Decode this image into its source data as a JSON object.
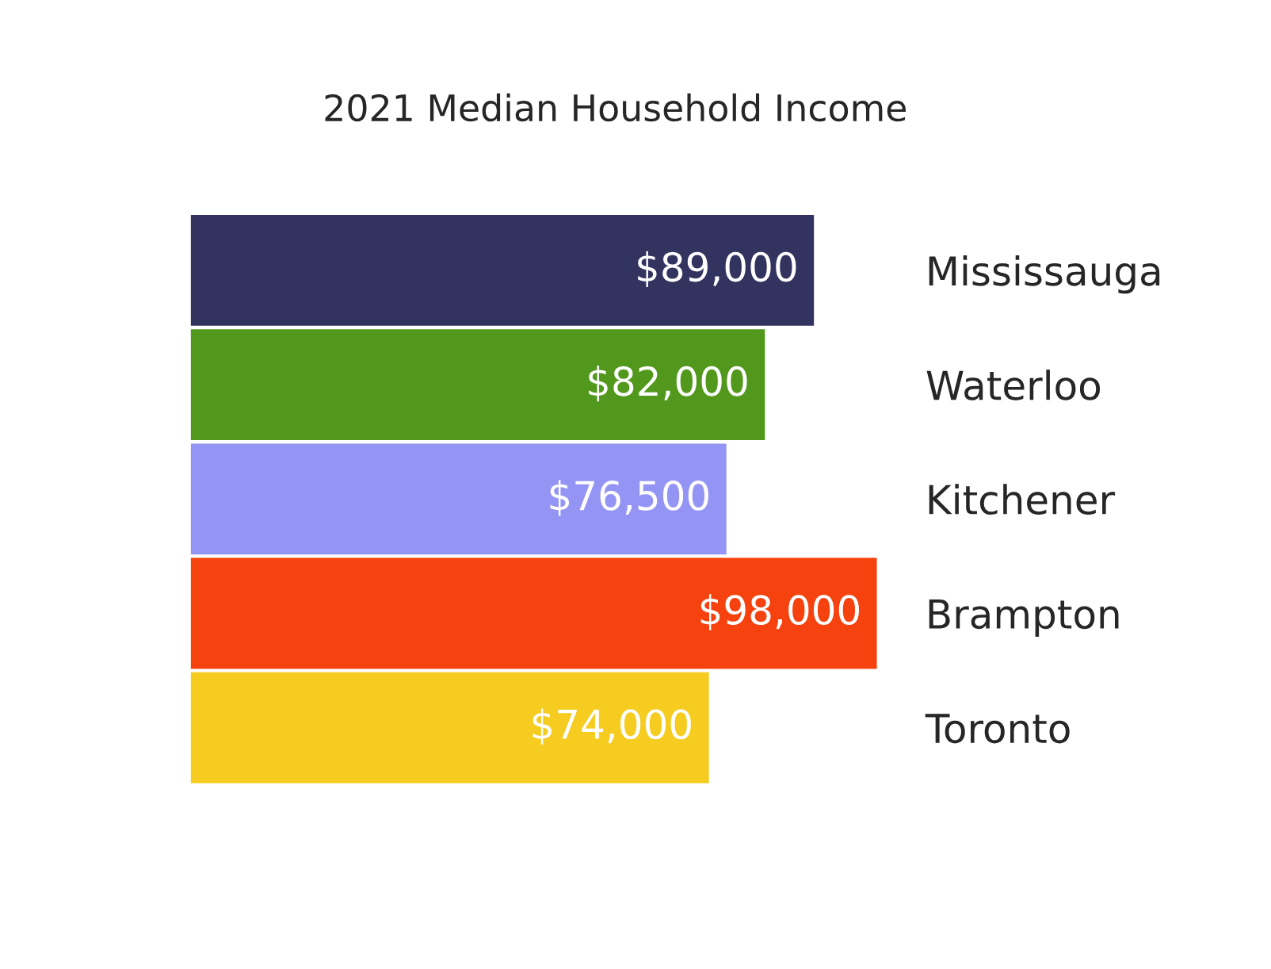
{
  "chart_data": {
    "type": "bar",
    "title": "2021 Median Household Income",
    "orientation": "horizontal",
    "categories": [
      "Mississauga",
      "Waterloo",
      "Kitchener",
      "Brampton",
      "Toronto"
    ],
    "values": [
      89000,
      82000,
      76500,
      98000,
      74000
    ],
    "value_labels": [
      "$89,000",
      "$82,000",
      "$76,500",
      "$98,000",
      "$74,000"
    ],
    "colors": [
      "#333360",
      "#52981c",
      "#9494f5",
      "#f5420f",
      "#f5cc1f"
    ],
    "tick_labels": "y"
  }
}
